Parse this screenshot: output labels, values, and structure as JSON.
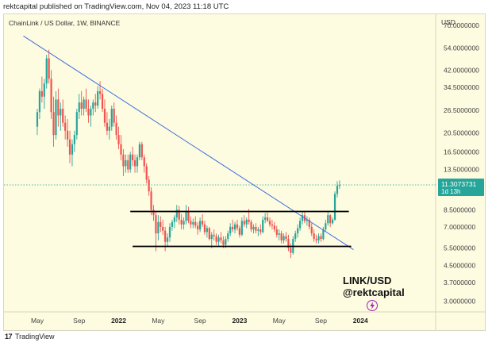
{
  "header": {
    "text": "rektcapital published on TradingView.com, Nov 04, 2023 11:18 UTC"
  },
  "footer": {
    "logo": "17",
    "brand": "TradingView"
  },
  "chart_data": {
    "type": "candlestick",
    "title": "ChainLink / US Dollar, 1W, BINANCE",
    "currency": "USD",
    "scale": "log",
    "ylim": [
      2.7,
      78
    ],
    "y_ticks": [
      {
        "value": 70,
        "label": "70.0000000"
      },
      {
        "value": 54,
        "label": "54.0000000"
      },
      {
        "value": 42,
        "label": "42.0000000"
      },
      {
        "value": 34.5,
        "label": "34.5000000"
      },
      {
        "value": 26.5,
        "label": "26.5000000"
      },
      {
        "value": 20.5,
        "label": "20.5000000"
      },
      {
        "value": 16.5,
        "label": "16.5000000"
      },
      {
        "value": 13.5,
        "label": "13.5000000"
      },
      {
        "value": 8.5,
        "label": "8.5000000"
      },
      {
        "value": 7.0,
        "label": "7.0000000"
      },
      {
        "value": 5.5,
        "label": "5.5000000"
      },
      {
        "value": 4.5,
        "label": "4.5000000"
      },
      {
        "value": 3.7,
        "label": "3.7000000"
      },
      {
        "value": 3.0,
        "label": "3.0000000"
      }
    ],
    "x_ticks": [
      {
        "week": 0,
        "label": "May",
        "bold": false
      },
      {
        "week": 18,
        "label": "Sep",
        "bold": false
      },
      {
        "week": 35,
        "label": "2022",
        "bold": true
      },
      {
        "week": 52,
        "label": "May",
        "bold": false
      },
      {
        "week": 70,
        "label": "Sep",
        "bold": false
      },
      {
        "week": 87,
        "label": "2023",
        "bold": true
      },
      {
        "week": 104,
        "label": "May",
        "bold": false
      },
      {
        "week": 122,
        "label": "Sep",
        "bold": false
      },
      {
        "week": 139,
        "label": "2024",
        "bold": true
      }
    ],
    "last_price": {
      "value": 11.3073731,
      "label": "11.3073731",
      "countdown": "1d 13h"
    },
    "up_color": "#26a69a",
    "down_color": "#ef5350",
    "trendline": {
      "color": "#3f6fe0",
      "start": {
        "week": -6,
        "value": 62
      },
      "end": {
        "week": 136,
        "value": 5.4
      }
    },
    "range_lines": [
      {
        "name": "range-resistance",
        "value": 8.35,
        "from_week": 40,
        "to_week": 134
      },
      {
        "name": "range-support",
        "value": 5.6,
        "from_week": 41,
        "to_week": 135
      }
    ],
    "candles": [
      {
        "o": 22.0,
        "h": 27.0,
        "l": 20.0,
        "c": 26.0
      },
      {
        "o": 26.0,
        "h": 34.0,
        "l": 24.0,
        "c": 33.0
      },
      {
        "o": 33.0,
        "h": 39.0,
        "l": 29.0,
        "c": 31.0
      },
      {
        "o": 31.0,
        "h": 38.0,
        "l": 27.0,
        "c": 36.0
      },
      {
        "o": 36.0,
        "h": 50.0,
        "l": 34.0,
        "c": 48.0
      },
      {
        "o": 48.0,
        "h": 53.0,
        "l": 36.0,
        "c": 38.0
      },
      {
        "o": 38.0,
        "h": 42.0,
        "l": 24.0,
        "c": 26.0
      },
      {
        "o": 26.0,
        "h": 31.0,
        "l": 17.5,
        "c": 20.0
      },
      {
        "o": 20.0,
        "h": 33.0,
        "l": 19.0,
        "c": 30.0
      },
      {
        "o": 30.0,
        "h": 34.0,
        "l": 22.0,
        "c": 25.0
      },
      {
        "o": 25.0,
        "h": 29.0,
        "l": 21.0,
        "c": 27.0
      },
      {
        "o": 27.0,
        "h": 30.0,
        "l": 22.0,
        "c": 23.0
      },
      {
        "o": 23.0,
        "h": 25.0,
        "l": 19.0,
        "c": 21.0
      },
      {
        "o": 21.0,
        "h": 24.0,
        "l": 17.5,
        "c": 19.0
      },
      {
        "o": 19.0,
        "h": 21.0,
        "l": 14.5,
        "c": 16.0
      },
      {
        "o": 16.0,
        "h": 19.0,
        "l": 14.0,
        "c": 18.0
      },
      {
        "o": 18.0,
        "h": 21.0,
        "l": 16.5,
        "c": 20.0
      },
      {
        "o": 20.0,
        "h": 27.0,
        "l": 19.0,
        "c": 26.0
      },
      {
        "o": 26.0,
        "h": 32.0,
        "l": 24.0,
        "c": 29.0
      },
      {
        "o": 29.0,
        "h": 33.0,
        "l": 25.0,
        "c": 27.0
      },
      {
        "o": 27.0,
        "h": 31.0,
        "l": 25.0,
        "c": 30.0
      },
      {
        "o": 30.0,
        "h": 34.0,
        "l": 26.0,
        "c": 27.0
      },
      {
        "o": 27.0,
        "h": 30.0,
        "l": 23.0,
        "c": 25.0
      },
      {
        "o": 25.0,
        "h": 28.0,
        "l": 22.0,
        "c": 27.0
      },
      {
        "o": 27.0,
        "h": 30.0,
        "l": 25.0,
        "c": 29.0
      },
      {
        "o": 29.0,
        "h": 32.0,
        "l": 26.0,
        "c": 28.0
      },
      {
        "o": 28.0,
        "h": 35.0,
        "l": 27.0,
        "c": 33.0
      },
      {
        "o": 33.0,
        "h": 37.0,
        "l": 30.0,
        "c": 32.0
      },
      {
        "o": 32.0,
        "h": 34.0,
        "l": 26.0,
        "c": 27.0
      },
      {
        "o": 27.0,
        "h": 30.0,
        "l": 22.0,
        "c": 23.0
      },
      {
        "o": 23.0,
        "h": 26.0,
        "l": 20.0,
        "c": 21.0
      },
      {
        "o": 21.0,
        "h": 24.0,
        "l": 19.0,
        "c": 22.0
      },
      {
        "o": 22.0,
        "h": 28.0,
        "l": 21.0,
        "c": 27.0
      },
      {
        "o": 27.0,
        "h": 29.0,
        "l": 22.0,
        "c": 23.0
      },
      {
        "o": 23.0,
        "h": 25.0,
        "l": 19.0,
        "c": 20.0
      },
      {
        "o": 20.0,
        "h": 22.0,
        "l": 17.0,
        "c": 18.0
      },
      {
        "o": 18.0,
        "h": 20.0,
        "l": 15.0,
        "c": 16.0
      },
      {
        "o": 16.0,
        "h": 17.0,
        "l": 12.5,
        "c": 14.0
      },
      {
        "o": 14.0,
        "h": 16.0,
        "l": 13.0,
        "c": 15.0
      },
      {
        "o": 15.0,
        "h": 16.0,
        "l": 13.0,
        "c": 13.5
      },
      {
        "o": 13.5,
        "h": 16.5,
        "l": 13.0,
        "c": 16.0
      },
      {
        "o": 16.0,
        "h": 17.5,
        "l": 14.0,
        "c": 15.0
      },
      {
        "o": 15.0,
        "h": 16.0,
        "l": 13.0,
        "c": 14.0
      },
      {
        "o": 14.0,
        "h": 16.0,
        "l": 13.0,
        "c": 15.5
      },
      {
        "o": 15.5,
        "h": 18.5,
        "l": 15.0,
        "c": 18.0
      },
      {
        "o": 18.0,
        "h": 18.5,
        "l": 15.0,
        "c": 15.5
      },
      {
        "o": 15.5,
        "h": 16.0,
        "l": 13.0,
        "c": 14.0
      },
      {
        "o": 14.0,
        "h": 14.5,
        "l": 11.5,
        "c": 12.0
      },
      {
        "o": 12.0,
        "h": 12.5,
        "l": 10.0,
        "c": 10.5
      },
      {
        "o": 10.5,
        "h": 11.0,
        "l": 8.0,
        "c": 8.5
      },
      {
        "o": 8.5,
        "h": 9.0,
        "l": 7.5,
        "c": 8.0
      },
      {
        "o": 8.0,
        "h": 8.3,
        "l": 5.3,
        "c": 6.5
      },
      {
        "o": 6.5,
        "h": 8.0,
        "l": 6.0,
        "c": 7.4
      },
      {
        "o": 7.4,
        "h": 7.9,
        "l": 6.6,
        "c": 7.0
      },
      {
        "o": 7.0,
        "h": 7.6,
        "l": 6.4,
        "c": 6.7
      },
      {
        "o": 6.7,
        "h": 7.0,
        "l": 5.3,
        "c": 5.9
      },
      {
        "o": 5.9,
        "h": 6.5,
        "l": 5.6,
        "c": 6.2
      },
      {
        "o": 6.2,
        "h": 7.3,
        "l": 5.9,
        "c": 7.0
      },
      {
        "o": 7.0,
        "h": 7.6,
        "l": 6.7,
        "c": 7.4
      },
      {
        "o": 7.4,
        "h": 8.0,
        "l": 6.9,
        "c": 7.8
      },
      {
        "o": 7.8,
        "h": 9.0,
        "l": 7.4,
        "c": 8.5
      },
      {
        "o": 8.5,
        "h": 8.9,
        "l": 7.2,
        "c": 7.6
      },
      {
        "o": 7.6,
        "h": 8.1,
        "l": 6.8,
        "c": 7.2
      },
      {
        "o": 7.2,
        "h": 7.8,
        "l": 6.8,
        "c": 7.5
      },
      {
        "o": 7.5,
        "h": 9.0,
        "l": 7.2,
        "c": 8.4
      },
      {
        "o": 8.4,
        "h": 8.8,
        "l": 7.3,
        "c": 7.5
      },
      {
        "o": 7.5,
        "h": 7.9,
        "l": 6.9,
        "c": 7.2
      },
      {
        "o": 7.2,
        "h": 7.7,
        "l": 6.9,
        "c": 7.4
      },
      {
        "o": 7.4,
        "h": 7.9,
        "l": 6.9,
        "c": 7.1
      },
      {
        "o": 7.1,
        "h": 7.4,
        "l": 6.4,
        "c": 6.8
      },
      {
        "o": 6.8,
        "h": 7.8,
        "l": 6.6,
        "c": 7.5
      },
      {
        "o": 7.5,
        "h": 8.1,
        "l": 7.0,
        "c": 7.2
      },
      {
        "o": 7.2,
        "h": 7.5,
        "l": 6.4,
        "c": 6.6
      },
      {
        "o": 6.6,
        "h": 7.1,
        "l": 6.2,
        "c": 6.9
      },
      {
        "o": 6.9,
        "h": 7.0,
        "l": 6.0,
        "c": 6.1
      },
      {
        "o": 6.1,
        "h": 6.6,
        "l": 5.5,
        "c": 6.4
      },
      {
        "o": 6.4,
        "h": 6.8,
        "l": 6.0,
        "c": 6.3
      },
      {
        "o": 6.3,
        "h": 6.5,
        "l": 5.7,
        "c": 5.9
      },
      {
        "o": 5.9,
        "h": 6.4,
        "l": 5.6,
        "c": 6.2
      },
      {
        "o": 6.2,
        "h": 6.6,
        "l": 5.8,
        "c": 6.0
      },
      {
        "o": 6.0,
        "h": 6.3,
        "l": 5.5,
        "c": 5.7
      },
      {
        "o": 5.7,
        "h": 6.3,
        "l": 5.5,
        "c": 6.1
      },
      {
        "o": 6.1,
        "h": 6.7,
        "l": 5.9,
        "c": 6.5
      },
      {
        "o": 6.5,
        "h": 7.3,
        "l": 6.3,
        "c": 7.0
      },
      {
        "o": 7.0,
        "h": 7.6,
        "l": 6.6,
        "c": 6.8
      },
      {
        "o": 6.8,
        "h": 7.4,
        "l": 6.5,
        "c": 7.2
      },
      {
        "o": 7.2,
        "h": 7.6,
        "l": 6.7,
        "c": 6.9
      },
      {
        "o": 6.9,
        "h": 7.1,
        "l": 6.2,
        "c": 6.4
      },
      {
        "o": 6.4,
        "h": 7.8,
        "l": 6.3,
        "c": 7.5
      },
      {
        "o": 7.5,
        "h": 8.0,
        "l": 7.0,
        "c": 7.2
      },
      {
        "o": 7.2,
        "h": 7.8,
        "l": 6.9,
        "c": 7.6
      },
      {
        "o": 7.6,
        "h": 8.6,
        "l": 7.2,
        "c": 7.4
      },
      {
        "o": 7.4,
        "h": 7.6,
        "l": 6.6,
        "c": 6.8
      },
      {
        "o": 6.8,
        "h": 7.2,
        "l": 6.5,
        "c": 7.0
      },
      {
        "o": 7.0,
        "h": 7.3,
        "l": 6.5,
        "c": 6.7
      },
      {
        "o": 6.7,
        "h": 7.0,
        "l": 6.3,
        "c": 6.8
      },
      {
        "o": 6.8,
        "h": 7.2,
        "l": 6.4,
        "c": 6.6
      },
      {
        "o": 6.6,
        "h": 7.9,
        "l": 6.5,
        "c": 7.6
      },
      {
        "o": 7.6,
        "h": 8.2,
        "l": 7.3,
        "c": 7.8
      },
      {
        "o": 7.8,
        "h": 8.3,
        "l": 7.4,
        "c": 7.5
      },
      {
        "o": 7.5,
        "h": 7.8,
        "l": 7.0,
        "c": 7.2
      },
      {
        "o": 7.2,
        "h": 7.6,
        "l": 6.8,
        "c": 7.1
      },
      {
        "o": 7.1,
        "h": 7.4,
        "l": 6.6,
        "c": 6.8
      },
      {
        "o": 6.8,
        "h": 7.1,
        "l": 6.2,
        "c": 6.4
      },
      {
        "o": 6.4,
        "h": 6.8,
        "l": 6.0,
        "c": 6.5
      },
      {
        "o": 6.5,
        "h": 6.7,
        "l": 5.8,
        "c": 6.0
      },
      {
        "o": 6.0,
        "h": 6.5,
        "l": 5.8,
        "c": 6.3
      },
      {
        "o": 6.3,
        "h": 6.6,
        "l": 5.9,
        "c": 6.1
      },
      {
        "o": 6.1,
        "h": 6.4,
        "l": 5.3,
        "c": 5.5
      },
      {
        "o": 5.5,
        "h": 5.8,
        "l": 4.9,
        "c": 5.2
      },
      {
        "o": 5.2,
        "h": 6.3,
        "l": 5.1,
        "c": 6.1
      },
      {
        "o": 6.1,
        "h": 6.7,
        "l": 5.9,
        "c": 6.5
      },
      {
        "o": 6.5,
        "h": 7.2,
        "l": 6.2,
        "c": 6.9
      },
      {
        "o": 6.9,
        "h": 7.8,
        "l": 6.7,
        "c": 7.5
      },
      {
        "o": 7.5,
        "h": 8.3,
        "l": 7.2,
        "c": 8.0
      },
      {
        "o": 8.0,
        "h": 8.4,
        "l": 7.3,
        "c": 7.5
      },
      {
        "o": 7.5,
        "h": 7.9,
        "l": 7.1,
        "c": 7.6
      },
      {
        "o": 7.6,
        "h": 7.8,
        "l": 6.8,
        "c": 7.0
      },
      {
        "o": 7.0,
        "h": 7.3,
        "l": 6.3,
        "c": 6.5
      },
      {
        "o": 6.5,
        "h": 6.8,
        "l": 5.9,
        "c": 6.1
      },
      {
        "o": 6.1,
        "h": 6.4,
        "l": 5.8,
        "c": 6.0
      },
      {
        "o": 6.0,
        "h": 6.5,
        "l": 5.8,
        "c": 6.3
      },
      {
        "o": 6.3,
        "h": 6.5,
        "l": 5.9,
        "c": 6.1
      },
      {
        "o": 6.1,
        "h": 7.0,
        "l": 6.0,
        "c": 6.8
      },
      {
        "o": 6.8,
        "h": 7.6,
        "l": 6.6,
        "c": 7.3
      },
      {
        "o": 7.3,
        "h": 8.3,
        "l": 7.1,
        "c": 8.0
      },
      {
        "o": 8.0,
        "h": 8.1,
        "l": 7.0,
        "c": 7.3
      },
      {
        "o": 7.3,
        "h": 7.8,
        "l": 7.2,
        "c": 7.6
      },
      {
        "o": 7.6,
        "h": 10.5,
        "l": 7.5,
        "c": 10.2
      },
      {
        "o": 10.2,
        "h": 11.8,
        "l": 9.8,
        "c": 11.2
      },
      {
        "o": 11.2,
        "h": 11.9,
        "l": 10.8,
        "c": 11.3
      }
    ]
  },
  "watermark": {
    "pair": "LINK/USD",
    "handle": "@rektcapital"
  }
}
